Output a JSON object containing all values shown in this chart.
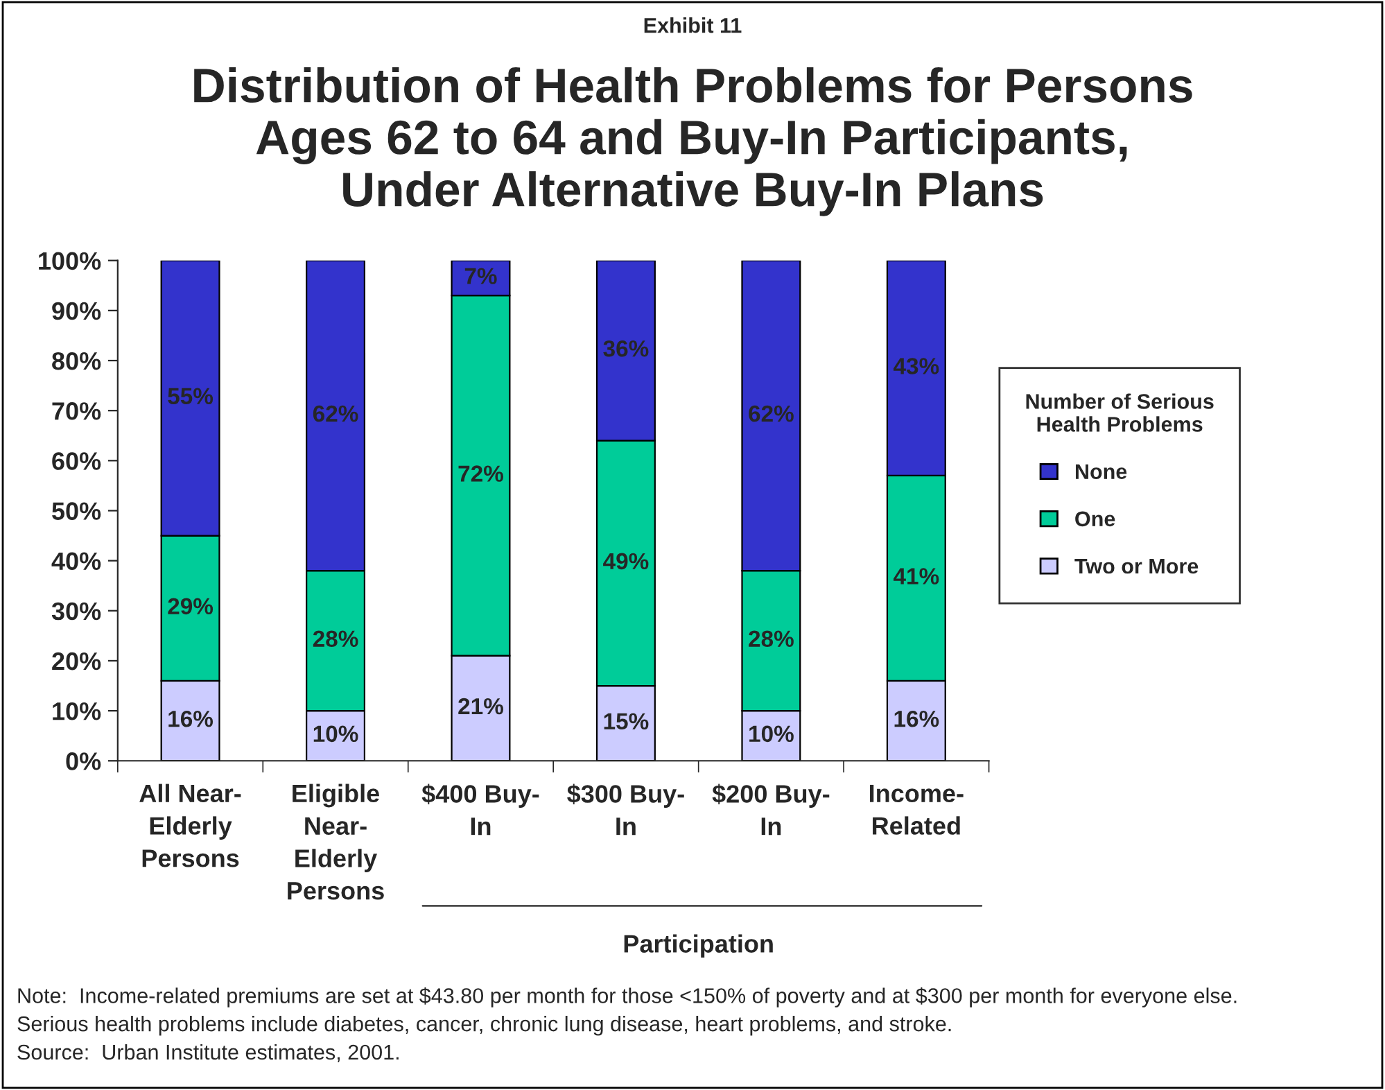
{
  "chart_data": {
    "type": "bar",
    "subtitle": "Exhibit 11",
    "title": "Distribution of Health Problems for Persons\nAges 62 to 64 and Buy-In Participants,\nUnder Alternative Buy-In Plans",
    "categories": [
      "All Near-\nElderly\nPersons",
      "Eligible\nNear-\nElderly\nPersons",
      "$400 Buy-\nIn",
      "$300 Buy-\nIn",
      "$200 Buy-\nIn",
      "Income-\nRelated"
    ],
    "stacked": true,
    "series": [
      {
        "name": "Two or More",
        "color": "#ccccff",
        "values": [
          16,
          10,
          21,
          15,
          10,
          16
        ],
        "value_labels": [
          "16%",
          "10%",
          "21%",
          "15%",
          "10%",
          "16%"
        ]
      },
      {
        "name": "One",
        "color": "#00cc99",
        "values": [
          29,
          28,
          72,
          49,
          28,
          41
        ],
        "value_labels": [
          "29%",
          "28%",
          "72%",
          "49%",
          "28%",
          "41%"
        ]
      },
      {
        "name": "None",
        "color": "#3333cc",
        "values": [
          55,
          62,
          7,
          36,
          62,
          43
        ],
        "value_labels": [
          "55%",
          "62%",
          "7%",
          "36%",
          "62%",
          "43%"
        ]
      }
    ],
    "ylim": [
      0,
      100
    ],
    "yticks": [
      {
        "value": 0,
        "label": "0%"
      },
      {
        "value": 10,
        "label": "10%"
      },
      {
        "value": 20,
        "label": "20%"
      },
      {
        "value": 30,
        "label": "30%"
      },
      {
        "value": 40,
        "label": "40%"
      },
      {
        "value": 50,
        "label": "50%"
      },
      {
        "value": 60,
        "label": "60%"
      },
      {
        "value": 70,
        "label": "70%"
      },
      {
        "value": 80,
        "label": "80%"
      },
      {
        "value": 90,
        "label": "90%"
      },
      {
        "value": 100,
        "label": "100%"
      }
    ],
    "legend": "right",
    "legend_title": "Number of Serious\nHealth Problems",
    "grid": false,
    "annotations": [
      "Participation",
      "Note:  Income-related premiums are set at $43.80 per month for those <150% of poverty and at $300 per month for everyone else.",
      "Serious health problems include diabetes, cancer, chronic lung disease, heart problems, and stroke.",
      "Source:  Urban Institute estimates, 2001."
    ]
  }
}
